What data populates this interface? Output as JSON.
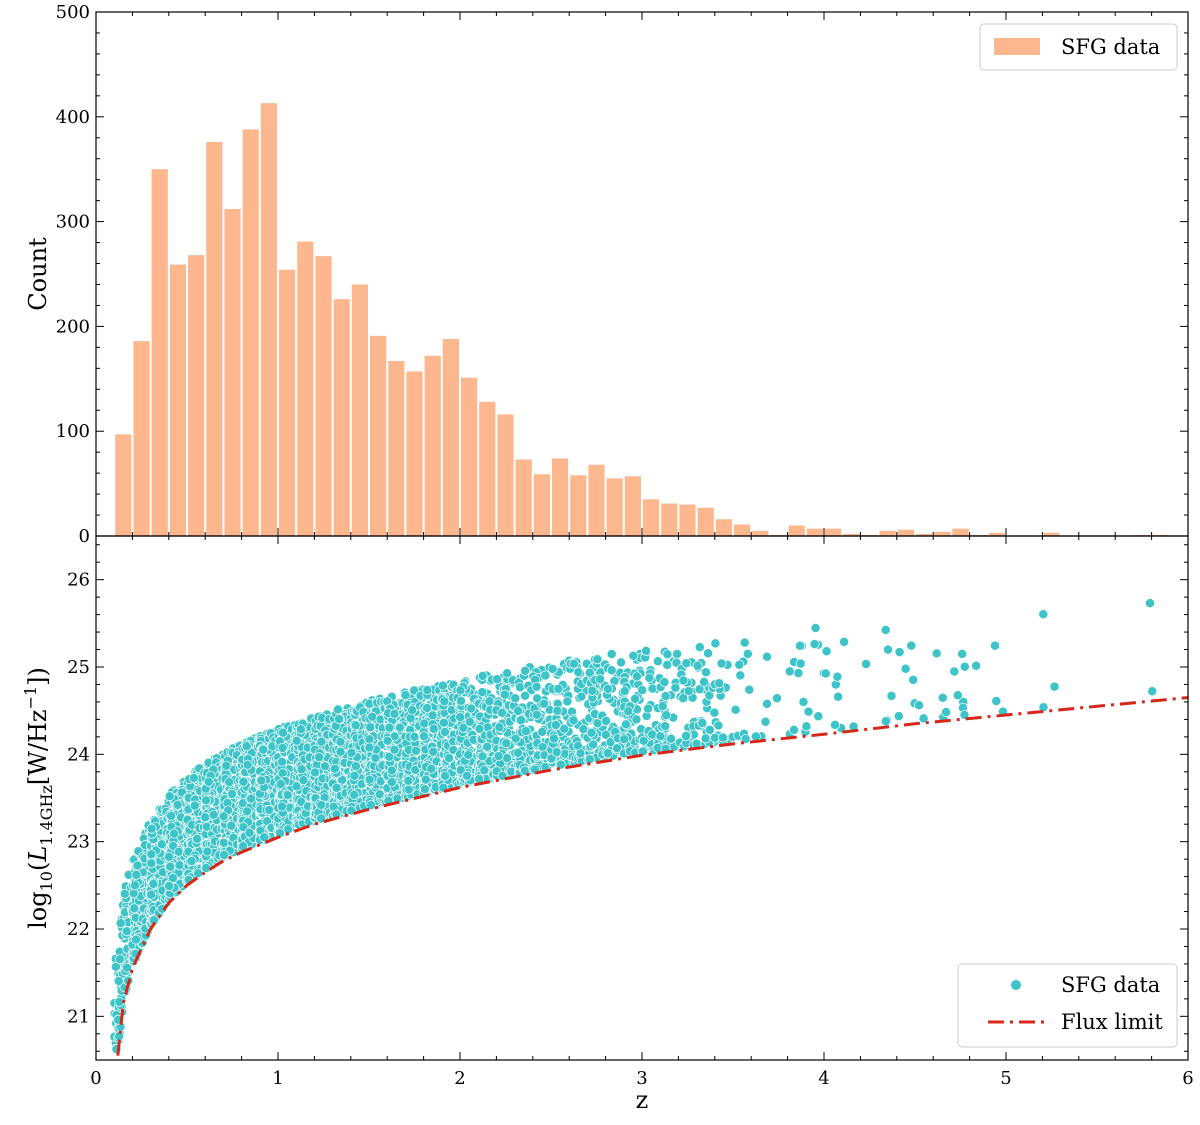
{
  "chart_data": [
    {
      "type": "bar",
      "panel": "top",
      "title": "",
      "xlabel": "",
      "ylabel": "Count",
      "xlim": [
        0,
        6
      ],
      "ylim": [
        0,
        500
      ],
      "yticks": [
        0,
        100,
        200,
        300,
        400,
        500
      ],
      "bin_width": 0.1,
      "bin_starts": [
        0.1,
        0.2,
        0.3,
        0.4,
        0.5,
        0.6,
        0.7,
        0.8,
        0.9,
        1.0,
        1.1,
        1.2,
        1.3,
        1.4,
        1.5,
        1.6,
        1.7,
        1.8,
        1.9,
        2.0,
        2.1,
        2.2,
        2.3,
        2.4,
        2.5,
        2.6,
        2.7,
        2.8,
        2.9,
        3.0,
        3.1,
        3.2,
        3.3,
        3.4,
        3.5,
        3.6,
        3.7,
        3.8,
        3.9,
        4.0,
        4.1,
        4.2,
        4.3,
        4.4,
        4.5,
        4.6,
        4.7,
        4.8,
        4.9,
        5.0,
        5.1,
        5.2,
        5.3,
        5.4,
        5.5,
        5.6,
        5.7,
        5.8,
        5.9
      ],
      "values": [
        97,
        186,
        350,
        259,
        268,
        376,
        312,
        388,
        413,
        254,
        281,
        267,
        226,
        240,
        191,
        167,
        157,
        172,
        188,
        151,
        128,
        116,
        73,
        59,
        74,
        58,
        68,
        55,
        57,
        35,
        31,
        30,
        27,
        16,
        11,
        5,
        1,
        10,
        7,
        7,
        2,
        1,
        5,
        6,
        2,
        4,
        7,
        1,
        3,
        0,
        0,
        3,
        0,
        0,
        0,
        0,
        1,
        1,
        0
      ],
      "color": "#fdb78e",
      "legend": [
        {
          "label": "SFG data",
          "kind": "patch"
        }
      ],
      "legend_position": "top-right"
    },
    {
      "type": "scatter",
      "panel": "bottom",
      "xlabel": "z",
      "ylabel_parts": {
        "log": "log",
        "log_sub": "10",
        "L": "L",
        "L_sub": "1.4GHz",
        "unit": "W/Hz",
        "exp": "−1"
      },
      "xlim": [
        0,
        6
      ],
      "ylim": [
        20.5,
        26.5
      ],
      "xticks": [
        0,
        1,
        2,
        3,
        4,
        5,
        6
      ],
      "yticks": [
        21,
        22,
        23,
        24,
        25,
        26
      ],
      "point_color": "#3cc4c8",
      "flux_limit_color": "#d62718",
      "flux_limit": {
        "z": [
          0.12,
          0.15,
          0.2,
          0.3,
          0.4,
          0.5,
          0.6,
          0.7,
          0.8,
          1.0,
          1.2,
          1.5,
          2.0,
          2.5,
          3.0,
          3.5,
          4.0,
          4.5,
          5.0,
          5.5,
          6.0
        ],
        "logL": [
          20.55,
          21.15,
          21.55,
          22.0,
          22.3,
          22.5,
          22.65,
          22.78,
          22.88,
          23.05,
          23.2,
          23.37,
          23.62,
          23.82,
          23.99,
          24.12,
          24.23,
          24.35,
          24.45,
          24.55,
          24.65
        ]
      },
      "legend": [
        {
          "label": "SFG data",
          "kind": "marker"
        },
        {
          "label": "Flux limit",
          "kind": "dashdot"
        }
      ],
      "legend_position": "bottom-right"
    }
  ]
}
